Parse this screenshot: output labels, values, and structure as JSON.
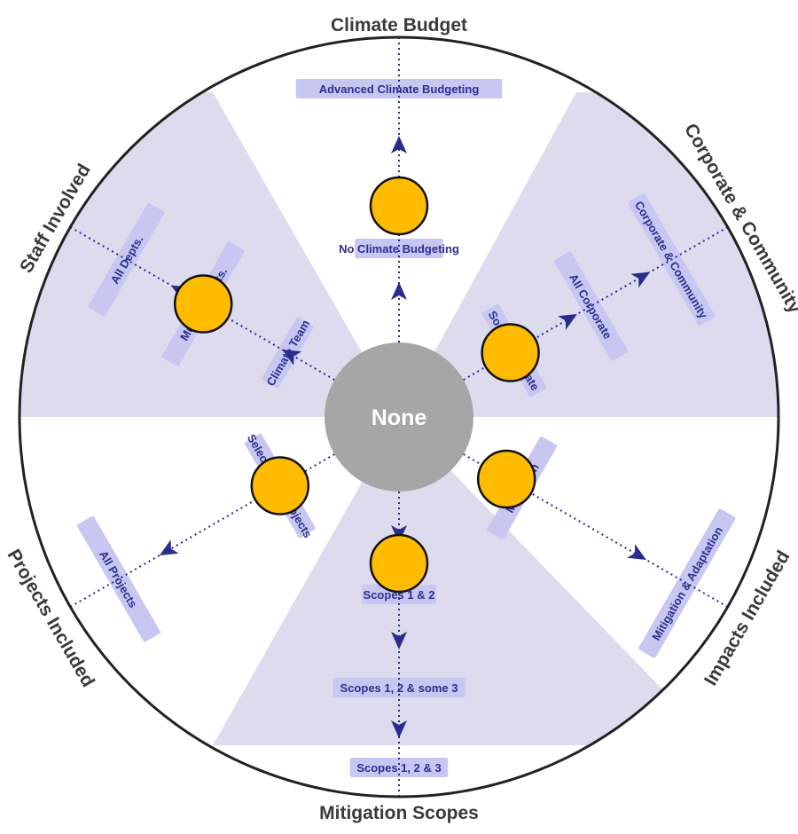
{
  "center": {
    "label": "None"
  },
  "axes": [
    {
      "title": "Climate Budget",
      "stages": [
        "No Climate Budgeting",
        "Advanced Climate Budgeting"
      ],
      "marker_stage": "No Climate Budgeting"
    },
    {
      "title": "Corporate & Community",
      "stages": [
        "Some Corporate",
        "All Corporate",
        "Corporate & Community"
      ],
      "marker_stage": "Some Corporate"
    },
    {
      "title": "Impacts Included",
      "stages": [
        "Mitigation",
        "Mitigation & Adaptation"
      ],
      "marker_stage": "Mitigation"
    },
    {
      "title": "Mitigation Scopes",
      "stages": [
        "Scopes 1 & 2",
        "Scopes 1, 2 & some 3",
        "Scopes 1, 2 & 3"
      ],
      "marker_stage": "Scopes 1 & 2"
    },
    {
      "title": "Projects Included",
      "stages": [
        "Select Large Projects",
        "All Projects"
      ],
      "marker_stage": "Select Large Projects"
    },
    {
      "title": "Staff Involved",
      "stages": [
        "Climate Team",
        "Multiple Depts.",
        "All Depts."
      ],
      "marker_stage": "Multiple Depts."
    }
  ],
  "colors": {
    "sector_shade": "#dcdcee",
    "label_band": "#c7c7f2",
    "arrow": "#2b2b8c",
    "marker": "#ffbb00",
    "center": "#a6a6a6",
    "outline": "#222222"
  }
}
